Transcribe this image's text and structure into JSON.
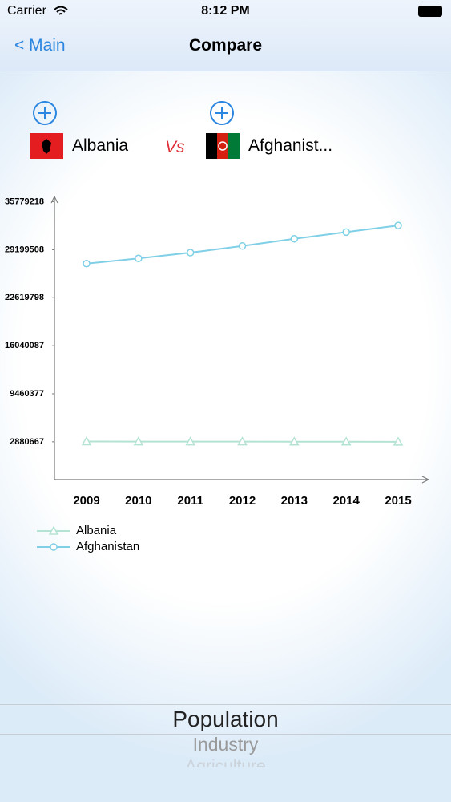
{
  "status_bar": {
    "carrier": "Carrier",
    "time": "8:12 PM"
  },
  "nav": {
    "back": "< Main",
    "title": "Compare"
  },
  "compare": {
    "left": "Albania",
    "vs": "Vs",
    "right": "Afghanist..."
  },
  "chart_data": {
    "type": "line",
    "categories": [
      "2009",
      "2010",
      "2011",
      "2012",
      "2013",
      "2014",
      "2015"
    ],
    "series": [
      {
        "name": "Albania",
        "color": "#b5e3d3",
        "marker": "triangle",
        "values": [
          2927519,
          2913021,
          2905195,
          2900401,
          2895092,
          2889104,
          2880703
        ]
      },
      {
        "name": "Afghanistan",
        "color": "#7fd0e6",
        "marker": "circle",
        "values": [
          27294031,
          28004331,
          28803167,
          29708599,
          30696958,
          31627506,
          32526562
        ]
      }
    ],
    "ylim": [
      -2300000,
      36500000
    ],
    "yticks": [
      2880667,
      9460377,
      16040087,
      22619798,
      29199508,
      35779218
    ],
    "grid": false,
    "legend": "bottom-left"
  },
  "picker": {
    "items": [
      "Population",
      "Industry",
      "Agriculture"
    ]
  }
}
